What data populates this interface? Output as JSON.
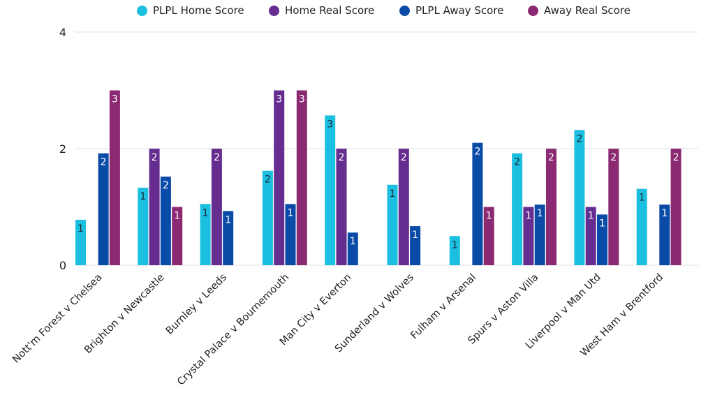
{
  "chart_data": {
    "type": "bar",
    "title": "",
    "xlabel": "",
    "ylabel": "",
    "ylim": [
      0,
      4
    ],
    "yticks": [
      0,
      2,
      4
    ],
    "grid": true,
    "legend_position": "top-center",
    "categories": [
      "Nott'm Forest v Chelsea",
      "Brighton v Newcastle",
      "Burnley v Leeds",
      "Crystal Palace v Bournemouth",
      "Man City v Everton",
      "Sunderland v Wolves",
      "Fulham v Arsenal",
      "Spurs v Aston Villa",
      "Liverpool v Man Utd",
      "West Ham v Brentford"
    ],
    "series": [
      {
        "name": "PLPL Home Score",
        "color": "#1bbfdf",
        "label_color": "#1a2a3a",
        "values": [
          0.78,
          1.33,
          1.05,
          1.62,
          2.57,
          1.38,
          0.5,
          1.92,
          2.32,
          1.31
        ],
        "labels": [
          "1",
          "1",
          "1",
          "2",
          "3",
          "1",
          "1",
          "2",
          "2",
          "1"
        ]
      },
      {
        "name": "Home Real Score",
        "color": "#662d91",
        "label_color": "#ffffff",
        "values": [
          0,
          2,
          2,
          3,
          2,
          2,
          0,
          1,
          1,
          0
        ],
        "labels": [
          "",
          "2",
          "2",
          "3",
          "2",
          "2",
          "",
          "1",
          "1",
          ""
        ]
      },
      {
        "name": "PLPL Away Score",
        "color": "#0b4ba8",
        "label_color": "#ffffff",
        "values": [
          1.92,
          1.52,
          0.93,
          1.05,
          0.56,
          0.67,
          2.1,
          1.04,
          0.87,
          1.04
        ],
        "labels": [
          "2",
          "2",
          "1",
          "1",
          "1",
          "1",
          "2",
          "1",
          "1",
          "1"
        ]
      },
      {
        "name": "Away Real Score",
        "color": "#8b2a72",
        "label_color": "#ffffff",
        "values": [
          3,
          1,
          0,
          3,
          0,
          0,
          1,
          2,
          2,
          2
        ],
        "labels": [
          "3",
          "1",
          "",
          "3",
          "",
          "",
          "1",
          "2",
          "2",
          "2"
        ]
      }
    ]
  }
}
